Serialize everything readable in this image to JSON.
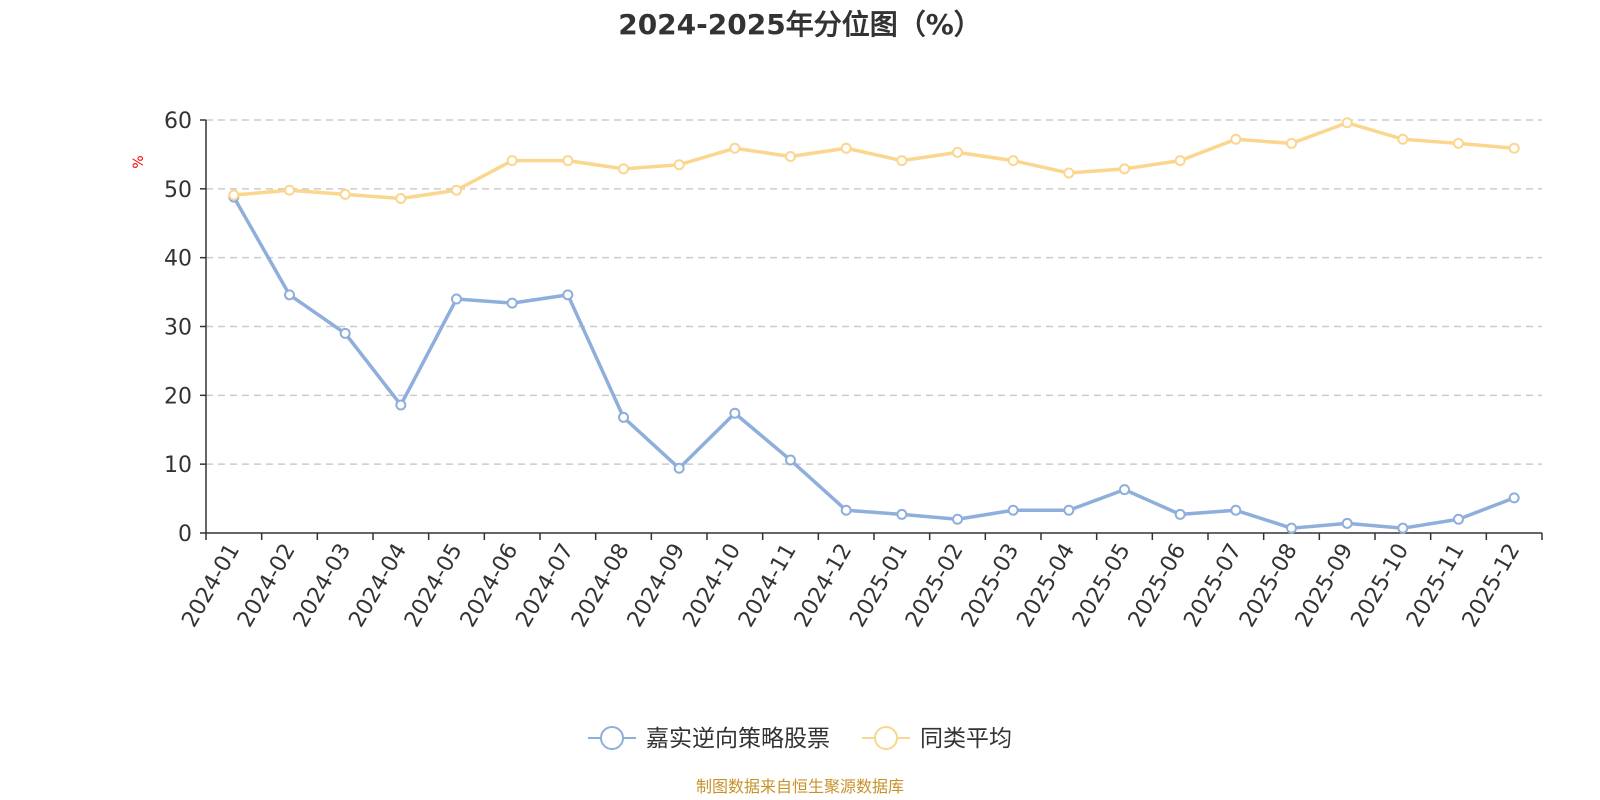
{
  "chart_data": {
    "type": "line",
    "title": "2024-2025年分位图（%）",
    "ylabel": "%",
    "xlabel": "",
    "ylim": [
      0,
      60
    ],
    "yticks": [
      "0",
      "10",
      "20",
      "30",
      "40",
      "50",
      "60"
    ],
    "grid": true,
    "legend_position": "bottom",
    "categories": [
      "2024-01",
      "2024-02",
      "2024-03",
      "2024-04",
      "2024-05",
      "2024-06",
      "2024-07",
      "2024-08",
      "2024-09",
      "2024-10",
      "2024-11",
      "2024-12",
      "2025-01",
      "2025-02",
      "2025-03",
      "2025-04",
      "2025-05",
      "2025-06",
      "2025-07",
      "2025-08",
      "2025-09",
      "2025-10",
      "2025-11",
      "2025-12"
    ],
    "series": [
      {
        "name": "嘉实逆向策略股票",
        "color": "#8eaedb",
        "values": [
          48.8,
          34.6,
          29.0,
          18.6,
          34.0,
          33.4,
          34.6,
          16.8,
          9.4,
          17.4,
          10.6,
          3.3,
          2.7,
          2.0,
          3.3,
          3.3,
          6.3,
          2.7,
          3.3,
          0.7,
          1.4,
          0.7,
          2.0,
          5.1
        ]
      },
      {
        "name": "同类平均",
        "color": "#fbd68e",
        "values": [
          49.1,
          49.8,
          49.2,
          48.6,
          49.8,
          54.1,
          54.1,
          52.9,
          53.5,
          55.9,
          54.7,
          55.9,
          54.1,
          55.3,
          54.1,
          52.3,
          52.9,
          54.1,
          57.2,
          56.6,
          59.6,
          57.2,
          56.6,
          55.9
        ]
      }
    ],
    "source": "制图数据来自恒生聚源数据库"
  }
}
